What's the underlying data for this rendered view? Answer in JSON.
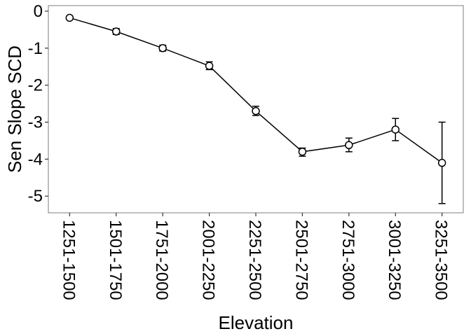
{
  "chart_data": {
    "type": "line",
    "title": "",
    "xlabel": "Elevation",
    "ylabel": "Sen Slope SCD",
    "categories": [
      "1251-1500",
      "1501-1750",
      "1751-2000",
      "2001-2250",
      "2251-2500",
      "2501-2750",
      "2751-3000",
      "3001-3250",
      "3251-3500"
    ],
    "series": [
      {
        "values": [
          -0.18,
          -0.55,
          -1.0,
          -1.48,
          -2.7,
          -3.8,
          -3.62,
          -3.2,
          -4.1
        ],
        "error_low": [
          -0.18,
          -0.63,
          -1.08,
          -1.58,
          -2.82,
          -3.92,
          -3.8,
          -3.5,
          -5.2
        ],
        "error_high": [
          -0.18,
          -0.47,
          -0.92,
          -1.37,
          -2.57,
          -3.7,
          -3.43,
          -2.9,
          -3.0
        ]
      }
    ],
    "yticks": [
      0,
      -1,
      -2,
      -3,
      -4,
      -5
    ],
    "ylim": [
      -5.45,
      0.15
    ],
    "grid": false,
    "legend": "none"
  }
}
